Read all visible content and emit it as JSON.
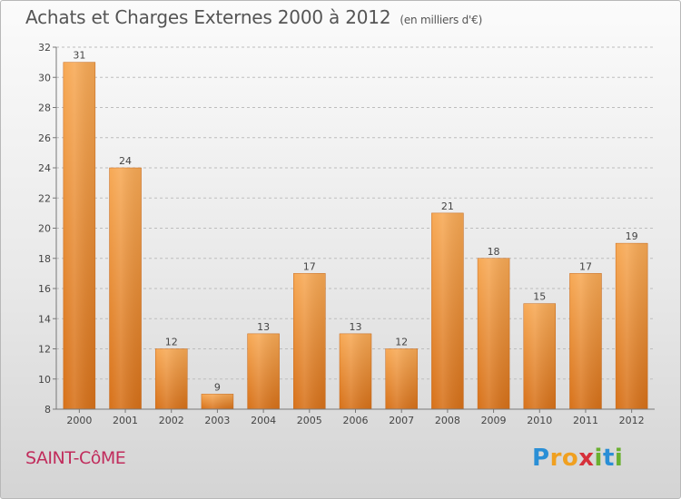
{
  "header": {
    "title": "Achats et Charges Externes 2000 à 2012",
    "subtitle": "(en milliers d'€)"
  },
  "commune": "SAINT-CôME",
  "brand": {
    "letters": [
      "P",
      "r",
      "o",
      "x",
      "i",
      "t",
      "i"
    ],
    "colors": [
      "#2a8fd6",
      "#f0a020",
      "#f0a020",
      "#d6303a",
      "#6ab030",
      "#2a8fd6",
      "#6ab030"
    ]
  },
  "colors": {
    "bar_light": "#f7a955",
    "bar_dark": "#d77119",
    "axis": "#777777",
    "grid": "#bdbdbd",
    "commune": "#c12c5c"
  },
  "chart_data": {
    "type": "bar",
    "categories": [
      "2000",
      "2001",
      "2002",
      "2003",
      "2004",
      "2005",
      "2006",
      "2007",
      "2008",
      "2009",
      "2010",
      "2011",
      "2012"
    ],
    "values": [
      31,
      24,
      12,
      9,
      13,
      17,
      13,
      12,
      21,
      18,
      15,
      17,
      19
    ],
    "y_ticks": [
      8,
      10,
      12,
      14,
      16,
      18,
      20,
      22,
      24,
      26,
      28,
      30,
      32
    ],
    "ylim": [
      8,
      32
    ],
    "grid": "dashed horizontal",
    "legend": "none"
  }
}
